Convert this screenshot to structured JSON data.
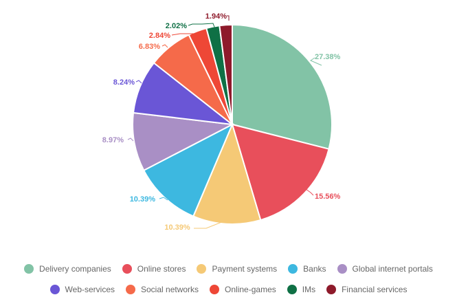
{
  "chart_data": {
    "type": "pie",
    "title": "",
    "series": [
      {
        "name": "Delivery companies",
        "value": 27.38,
        "label": "27.38%",
        "color": "#82c3a6"
      },
      {
        "name": "Online stores",
        "value": 15.56,
        "label": "15.56%",
        "color": "#e84f5b"
      },
      {
        "name": "Payment systems",
        "value": 10.39,
        "label": "10.39%",
        "color": "#f5c976"
      },
      {
        "name": "Banks",
        "value": 10.39,
        "label": "10.39%",
        "color": "#3db8e0"
      },
      {
        "name": "Global internet portals",
        "value": 8.97,
        "label": "8.97%",
        "color": "#a98fc5"
      },
      {
        "name": "Web-services",
        "value": 8.24,
        "label": "8.24%",
        "color": "#6a56d6"
      },
      {
        "name": "Social networks",
        "value": 6.83,
        "label": "6.83%",
        "color": "#f56a4a"
      },
      {
        "name": "Online-games",
        "value": 2.84,
        "label": "2.84%",
        "color": "#ee4736"
      },
      {
        "name": "IMs",
        "value": 2.02,
        "label": "2.02%",
        "color": "#0f7045"
      },
      {
        "name": "Financial services",
        "value": 1.94,
        "label": "1.94%",
        "color": "#8e1a2b"
      }
    ],
    "legend_position": "bottom"
  }
}
